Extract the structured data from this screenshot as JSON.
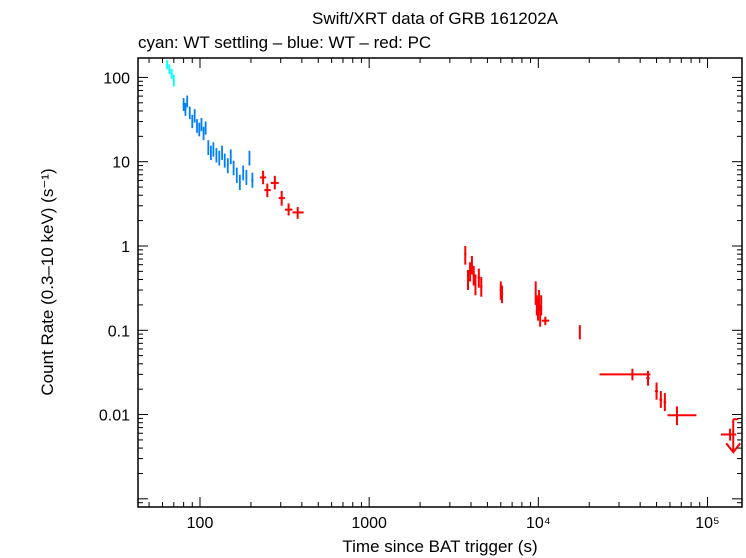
{
  "chart_data": {
    "type": "scatter",
    "title": "Swift/XRT data of GRB 161202A",
    "subtitle": "cyan: WT settling – blue: WT – red: PC",
    "xlabel": "Time since BAT trigger (s)",
    "ylabel": "Count Rate (0.3–10 keV) (s⁻¹)",
    "xscale": "log",
    "yscale": "log",
    "xlim": [
      43,
      160000
    ],
    "ylim": [
      0.0008,
      170
    ],
    "x_tick_labels": [
      {
        "value": 100,
        "label": "100"
      },
      {
        "value": 1000,
        "label": "1000"
      },
      {
        "value": 10000,
        "label": "10⁴"
      },
      {
        "value": 100000,
        "label": "10⁵"
      }
    ],
    "y_tick_labels": [
      {
        "value": 100,
        "label": "100"
      },
      {
        "value": 10,
        "label": "10"
      },
      {
        "value": 1,
        "label": "1"
      },
      {
        "value": 0.1,
        "label": "0.1"
      },
      {
        "value": 0.01,
        "label": "0.01"
      }
    ],
    "series": [
      {
        "name": "WT settling",
        "color": "#00ffff",
        "points": [
          {
            "x": 64,
            "xlo": 63,
            "xhi": 65,
            "y": 140,
            "ylo": 125,
            "yhi": 160
          },
          {
            "x": 66,
            "xlo": 65,
            "xhi": 67,
            "y": 125,
            "ylo": 110,
            "yhi": 142
          },
          {
            "x": 68,
            "xlo": 67,
            "xhi": 69,
            "y": 110,
            "ylo": 96,
            "yhi": 126
          },
          {
            "x": 70,
            "xlo": 69,
            "xhi": 71,
            "y": 92,
            "ylo": 78,
            "yhi": 108
          }
        ]
      },
      {
        "name": "WT",
        "color": "#0080ff",
        "points": [
          {
            "x": 80,
            "xlo": 79,
            "xhi": 81,
            "y": 48,
            "ylo": 40,
            "yhi": 57
          },
          {
            "x": 82,
            "xlo": 81,
            "xhi": 83,
            "y": 42,
            "ylo": 35,
            "yhi": 50
          },
          {
            "x": 84,
            "xlo": 83,
            "xhi": 85,
            "y": 52,
            "ylo": 44,
            "yhi": 61
          },
          {
            "x": 87,
            "xlo": 86,
            "xhi": 88,
            "y": 38,
            "ylo": 32,
            "yhi": 45
          },
          {
            "x": 90,
            "xlo": 89,
            "xhi": 91,
            "y": 30,
            "ylo": 25,
            "yhi": 36
          },
          {
            "x": 93,
            "xlo": 92,
            "xhi": 94,
            "y": 35,
            "ylo": 29,
            "yhi": 42
          },
          {
            "x": 96,
            "xlo": 95,
            "xhi": 97,
            "y": 27,
            "ylo": 22,
            "yhi": 32
          },
          {
            "x": 99,
            "xlo": 98,
            "xhi": 100,
            "y": 24,
            "ylo": 20,
            "yhi": 29
          },
          {
            "x": 102,
            "xlo": 101,
            "xhi": 103,
            "y": 28,
            "ylo": 23,
            "yhi": 33
          },
          {
            "x": 105,
            "xlo": 104,
            "xhi": 106,
            "y": 22,
            "ylo": 18,
            "yhi": 26
          },
          {
            "x": 108,
            "xlo": 107,
            "xhi": 109,
            "y": 25,
            "ylo": 21,
            "yhi": 30
          },
          {
            "x": 112,
            "xlo": 111,
            "xhi": 113,
            "y": 15,
            "ylo": 12,
            "yhi": 18
          },
          {
            "x": 116,
            "xlo": 115,
            "xhi": 117,
            "y": 13,
            "ylo": 10.5,
            "yhi": 15.5
          },
          {
            "x": 120,
            "xlo": 119,
            "xhi": 121,
            "y": 14,
            "ylo": 11.5,
            "yhi": 17
          },
          {
            "x": 125,
            "xlo": 124,
            "xhi": 126,
            "y": 12,
            "ylo": 9.8,
            "yhi": 14.5
          },
          {
            "x": 130,
            "xlo": 129,
            "xhi": 131,
            "y": 11,
            "ylo": 9,
            "yhi": 13.5
          },
          {
            "x": 135,
            "xlo": 134,
            "xhi": 136,
            "y": 13,
            "ylo": 10.5,
            "yhi": 15.5
          },
          {
            "x": 140,
            "xlo": 139,
            "xhi": 141,
            "y": 10.5,
            "ylo": 8.5,
            "yhi": 12.5
          },
          {
            "x": 146,
            "xlo": 145,
            "xhi": 147,
            "y": 9,
            "ylo": 7.3,
            "yhi": 11
          },
          {
            "x": 152,
            "xlo": 151,
            "xhi": 153,
            "y": 11.5,
            "ylo": 9.4,
            "yhi": 14
          },
          {
            "x": 158,
            "xlo": 157,
            "xhi": 159,
            "y": 8.5,
            "ylo": 6.9,
            "yhi": 10.3
          },
          {
            "x": 165,
            "xlo": 164,
            "xhi": 166,
            "y": 7,
            "ylo": 5.6,
            "yhi": 8.5
          },
          {
            "x": 172,
            "xlo": 170,
            "xhi": 174,
            "y": 5.7,
            "ylo": 4.6,
            "yhi": 7
          },
          {
            "x": 180,
            "xlo": 178,
            "xhi": 182,
            "y": 7.5,
            "ylo": 6,
            "yhi": 9
          },
          {
            "x": 188,
            "xlo": 186,
            "xhi": 190,
            "y": 6.5,
            "ylo": 5.3,
            "yhi": 8
          },
          {
            "x": 196,
            "xlo": 194,
            "xhi": 198,
            "y": 11,
            "ylo": 9,
            "yhi": 13.5
          },
          {
            "x": 204,
            "xlo": 201,
            "xhi": 207,
            "y": 6,
            "ylo": 4.9,
            "yhi": 7.4
          }
        ]
      },
      {
        "name": "PC",
        "color": "#ff0000",
        "points": [
          {
            "x": 236,
            "xlo": 226,
            "xhi": 246,
            "y": 6.5,
            "ylo": 5.4,
            "yhi": 7.8
          },
          {
            "x": 250,
            "xlo": 240,
            "xhi": 262,
            "y": 4.6,
            "ylo": 3.8,
            "yhi": 5.5
          },
          {
            "x": 277,
            "xlo": 262,
            "xhi": 292,
            "y": 5.6,
            "ylo": 4.7,
            "yhi": 6.8
          },
          {
            "x": 304,
            "xlo": 292,
            "xhi": 318,
            "y": 3.7,
            "ylo": 3.0,
            "yhi": 4.5
          },
          {
            "x": 334,
            "xlo": 318,
            "xhi": 352,
            "y": 2.7,
            "ylo": 2.3,
            "yhi": 3.2
          },
          {
            "x": 378,
            "xlo": 352,
            "xhi": 410,
            "y": 2.5,
            "ylo": 2.1,
            "yhi": 2.9
          },
          {
            "x": 3700,
            "xlo": 3650,
            "xhi": 3750,
            "y": 0.8,
            "ylo": 0.6,
            "yhi": 1.0
          },
          {
            "x": 3840,
            "xlo": 3790,
            "xhi": 3890,
            "y": 0.4,
            "ylo": 0.3,
            "yhi": 0.52
          },
          {
            "x": 3950,
            "xlo": 3900,
            "xhi": 4000,
            "y": 0.5,
            "ylo": 0.38,
            "yhi": 0.64
          },
          {
            "x": 4050,
            "xlo": 4000,
            "xhi": 4100,
            "y": 0.6,
            "ylo": 0.46,
            "yhi": 0.76
          },
          {
            "x": 4150,
            "xlo": 4100,
            "xhi": 4200,
            "y": 0.45,
            "ylo": 0.34,
            "yhi": 0.58
          },
          {
            "x": 4250,
            "xlo": 4200,
            "xhi": 4300,
            "y": 0.35,
            "ylo": 0.26,
            "yhi": 0.46
          },
          {
            "x": 4450,
            "xlo": 4380,
            "xhi": 4520,
            "y": 0.42,
            "ylo": 0.32,
            "yhi": 0.54
          },
          {
            "x": 4600,
            "xlo": 4530,
            "xhi": 4670,
            "y": 0.33,
            "ylo": 0.25,
            "yhi": 0.43
          },
          {
            "x": 6000,
            "xlo": 5900,
            "xhi": 6100,
            "y": 0.3,
            "ylo": 0.23,
            "yhi": 0.38
          },
          {
            "x": 6100,
            "xlo": 6000,
            "xhi": 6200,
            "y": 0.27,
            "ylo": 0.21,
            "yhi": 0.34
          },
          {
            "x": 9650,
            "xlo": 9550,
            "xhi": 9750,
            "y": 0.28,
            "ylo": 0.2,
            "yhi": 0.38
          },
          {
            "x": 9800,
            "xlo": 9700,
            "xhi": 9900,
            "y": 0.2,
            "ylo": 0.15,
            "yhi": 0.26
          },
          {
            "x": 9950,
            "xlo": 9850,
            "xhi": 10050,
            "y": 0.18,
            "ylo": 0.13,
            "yhi": 0.24
          },
          {
            "x": 10100,
            "xlo": 10000,
            "xhi": 10200,
            "y": 0.23,
            "ylo": 0.17,
            "yhi": 0.3
          },
          {
            "x": 10250,
            "xlo": 10150,
            "xhi": 10350,
            "y": 0.15,
            "ylo": 0.11,
            "yhi": 0.2
          },
          {
            "x": 10400,
            "xlo": 10300,
            "xhi": 10500,
            "y": 0.2,
            "ylo": 0.15,
            "yhi": 0.26
          },
          {
            "x": 11000,
            "xlo": 10500,
            "xhi": 11600,
            "y": 0.13,
            "ylo": 0.115,
            "yhi": 0.145
          },
          {
            "x": 17600,
            "xlo": 17400,
            "xhi": 17800,
            "y": 0.095,
            "ylo": 0.078,
            "yhi": 0.115
          },
          {
            "x": 36000,
            "xlo": 23000,
            "xhi": 46000,
            "y": 0.03,
            "ylo": 0.0255,
            "yhi": 0.035
          },
          {
            "x": 44500,
            "xlo": 43500,
            "xhi": 45500,
            "y": 0.027,
            "ylo": 0.022,
            "yhi": 0.033
          },
          {
            "x": 50000,
            "xlo": 49000,
            "xhi": 51000,
            "y": 0.019,
            "ylo": 0.015,
            "yhi": 0.024
          },
          {
            "x": 53000,
            "xlo": 52000,
            "xhi": 54000,
            "y": 0.015,
            "ylo": 0.012,
            "yhi": 0.019
          },
          {
            "x": 56000,
            "xlo": 55000,
            "xhi": 57000,
            "y": 0.014,
            "ylo": 0.011,
            "yhi": 0.018
          },
          {
            "x": 66000,
            "xlo": 58000,
            "xhi": 86000,
            "y": 0.0098,
            "ylo": 0.0075,
            "yhi": 0.0125
          },
          {
            "x": 136000,
            "xlo": 120000,
            "xhi": 148000,
            "y": 0.0058,
            "ylo": 0.0049,
            "yhi": 0.0068
          }
        ],
        "upper_limits": [
          {
            "x": 142000,
            "xlo": 142000,
            "xhi": 152000,
            "y": 0.0088
          }
        ]
      }
    ]
  }
}
